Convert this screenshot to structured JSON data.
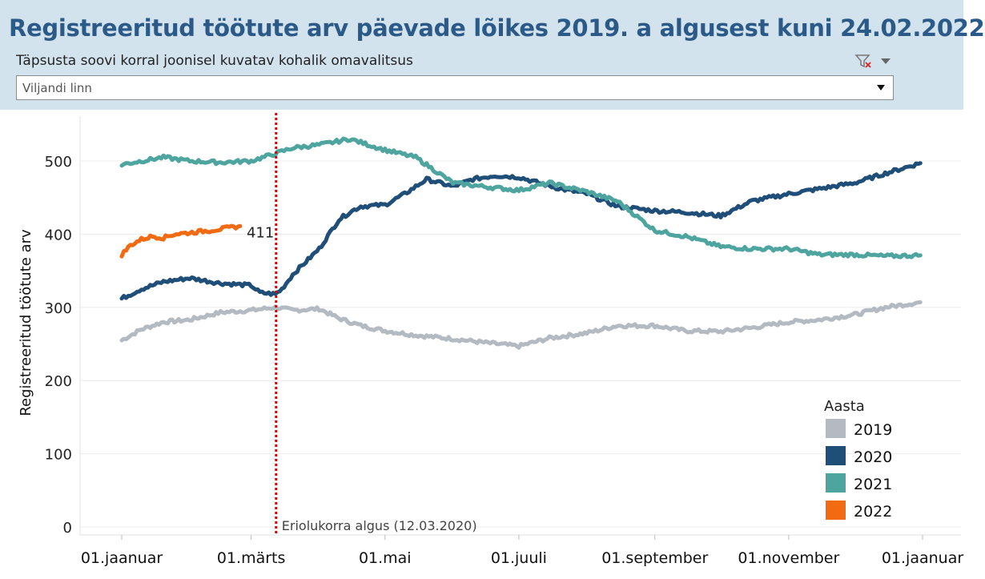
{
  "header": {
    "title": "Registreeritud töötute arv päevade lõikes 2019. a algusest kuni 24.02.2022",
    "filter_label": "Täpsusta soovi korral  joonisel kuvatav kohalik omavalitsus",
    "dropdown_value": "Viljandi linn"
  },
  "colors": {
    "header_bg": "#d3e3ee",
    "title": "#2b5a88",
    "marker_line": "#e00000"
  },
  "chart_data": {
    "type": "line",
    "ylabel": "Registreeritud töötute arv",
    "ylim": [
      0,
      550
    ],
    "yticks": [
      0,
      100,
      200,
      300,
      400,
      500
    ],
    "x_axis": "day of year",
    "xtick_labels": [
      "01.jaanuar",
      "01.märts",
      "01.mai",
      "01.juuli",
      "01.september",
      "01.november",
      "01.jaanuar"
    ],
    "grid": true,
    "legend": {
      "title": "Aasta",
      "position": "bottom-right"
    },
    "marker": {
      "date": "12.03",
      "label": "Eriolukorra algus (12.03.2020)"
    },
    "end_label": "411",
    "series": [
      {
        "name": "2019",
        "color": "#b3bac1",
        "x": [
          "01.01",
          "10.01",
          "20.01",
          "01.02",
          "15.02",
          "01.03",
          "12.03",
          "20.03",
          "01.04",
          "10.04",
          "20.04",
          "01.05",
          "15.05",
          "01.06",
          "15.06",
          "01.07",
          "15.07",
          "01.08",
          "15.08",
          "01.09",
          "15.09",
          "01.10",
          "15.10",
          "01.11",
          "15.11",
          "01.12",
          "15.12",
          "31.12"
        ],
        "values": [
          255,
          270,
          280,
          283,
          293,
          296,
          300,
          296,
          298,
          285,
          275,
          268,
          262,
          257,
          252,
          247,
          258,
          265,
          275,
          275,
          268,
          267,
          272,
          280,
          283,
          290,
          300,
          307
        ]
      },
      {
        "name": "2020",
        "color": "#1f4e79",
        "x": [
          "01.01",
          "10.01",
          "20.01",
          "01.02",
          "15.02",
          "01.03",
          "05.03",
          "12.03",
          "15.03",
          "20.03",
          "01.04",
          "10.04",
          "15.04",
          "20.04",
          "01.05",
          "10.05",
          "20.05",
          "01.06",
          "10.06",
          "20.06",
          "01.07",
          "10.07",
          "20.07",
          "01.08",
          "15.08",
          "01.09",
          "15.09",
          "01.10",
          "15.10",
          "01.11",
          "15.11",
          "01.12",
          "15.12",
          "31.12"
        ],
        "values": [
          312,
          325,
          335,
          340,
          333,
          330,
          320,
          318,
          325,
          345,
          380,
          420,
          430,
          438,
          440,
          455,
          475,
          465,
          475,
          480,
          478,
          470,
          462,
          455,
          438,
          432,
          430,
          425,
          445,
          455,
          462,
          470,
          483,
          497
        ]
      },
      {
        "name": "2021",
        "color": "#4ea5a0",
        "x": [
          "01.01",
          "10.01",
          "20.01",
          "01.02",
          "15.02",
          "01.03",
          "12.03",
          "20.03",
          "01.04",
          "15.04",
          "01.05",
          "15.05",
          "01.06",
          "15.06",
          "01.07",
          "15.07",
          "01.08",
          "15.08",
          "01.09",
          "15.09",
          "01.10",
          "15.10",
          "01.11",
          "15.11",
          "01.12",
          "15.12",
          "31.12"
        ],
        "values": [
          495,
          500,
          505,
          500,
          498,
          500,
          510,
          518,
          522,
          530,
          515,
          505,
          470,
          465,
          460,
          470,
          458,
          445,
          405,
          397,
          383,
          380,
          380,
          372,
          372,
          370,
          371
        ]
      },
      {
        "name": "2022",
        "color": "#f26b12",
        "x": [
          "01.01",
          "05.01",
          "10.01",
          "15.01",
          "20.01",
          "25.01",
          "01.02",
          "10.02",
          "15.02",
          "24.02"
        ],
        "values": [
          372,
          385,
          393,
          397,
          395,
          400,
          402,
          405,
          407,
          411
        ]
      }
    ]
  }
}
